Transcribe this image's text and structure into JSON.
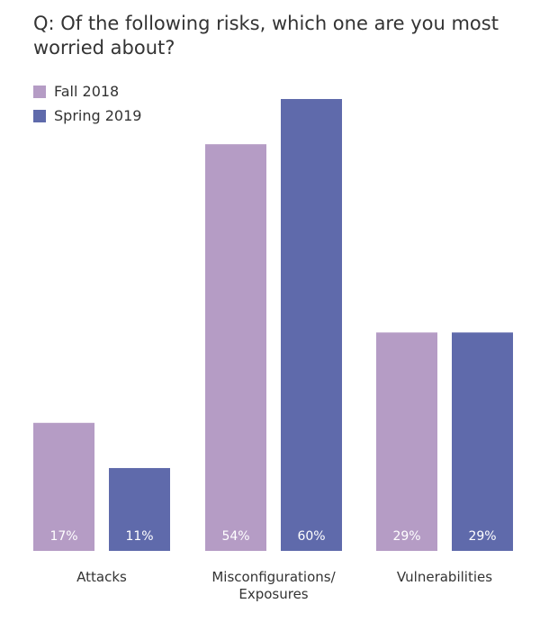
{
  "title_lines": [
    "Q: Of the following risks, which one are you most",
    "worried about?"
  ],
  "colors": {
    "fall": "#b59cc5",
    "spring": "#5f6aab",
    "text": "#333333",
    "value_label": "#ffffff"
  },
  "chart_data": {
    "type": "bar",
    "title": "Q: Of the following risks, which one are you most worried about?",
    "categories": [
      [
        "Attacks"
      ],
      [
        "Misconfigurations/",
        "Exposures"
      ],
      [
        "Vulnerabilities"
      ]
    ],
    "series": [
      {
        "name": "Fall 2018",
        "color": "#b59cc5",
        "values": [
          17,
          54,
          29
        ],
        "labels": [
          "17%",
          "54%",
          "29%"
        ]
      },
      {
        "name": "Spring 2019",
        "color": "#5f6aab",
        "values": [
          11,
          60,
          29
        ],
        "labels": [
          "11%",
          "60%",
          "29%"
        ]
      }
    ],
    "ylim": [
      0,
      60
    ],
    "grid": false,
    "legend": "top-left",
    "xlabel": "",
    "ylabel": ""
  }
}
